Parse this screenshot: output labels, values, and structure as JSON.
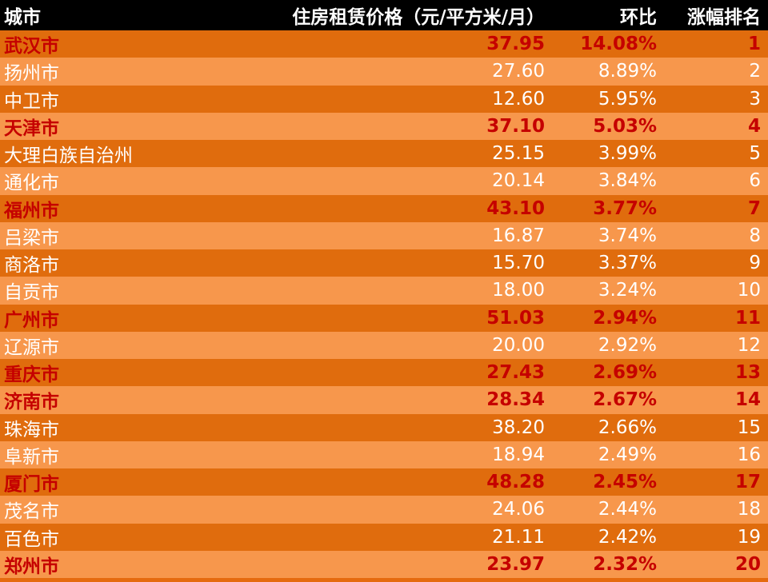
{
  "header": {
    "city": "城市",
    "price": "住房租赁价格（元/平方米/月）",
    "mom": "环比",
    "rank": "涨幅排名"
  },
  "rows": [
    {
      "city": "武汉市",
      "price": "37.95",
      "mom": "14.08%",
      "rank": "1",
      "highlight": true
    },
    {
      "city": "扬州市",
      "price": "27.60",
      "mom": "8.89%",
      "rank": "2",
      "highlight": false
    },
    {
      "city": "中卫市",
      "price": "12.60",
      "mom": "5.95%",
      "rank": "3",
      "highlight": false
    },
    {
      "city": "天津市",
      "price": "37.10",
      "mom": "5.03%",
      "rank": "4",
      "highlight": true
    },
    {
      "city": "大理白族自治州",
      "price": "25.15",
      "mom": "3.99%",
      "rank": "5",
      "highlight": false
    },
    {
      "city": "通化市",
      "price": "20.14",
      "mom": "3.84%",
      "rank": "6",
      "highlight": false
    },
    {
      "city": "福州市",
      "price": "43.10",
      "mom": "3.77%",
      "rank": "7",
      "highlight": true
    },
    {
      "city": "吕梁市",
      "price": "16.87",
      "mom": "3.74%",
      "rank": "8",
      "highlight": false
    },
    {
      "city": "商洛市",
      "price": "15.70",
      "mom": "3.37%",
      "rank": "9",
      "highlight": false
    },
    {
      "city": "自贡市",
      "price": "18.00",
      "mom": "3.24%",
      "rank": "10",
      "highlight": false
    },
    {
      "city": "广州市",
      "price": "51.03",
      "mom": "2.94%",
      "rank": "11",
      "highlight": true
    },
    {
      "city": "辽源市",
      "price": "20.00",
      "mom": "2.92%",
      "rank": "12",
      "highlight": false
    },
    {
      "city": "重庆市",
      "price": "27.43",
      "mom": "2.69%",
      "rank": "13",
      "highlight": true
    },
    {
      "city": "济南市",
      "price": "28.34",
      "mom": "2.67%",
      "rank": "14",
      "highlight": true
    },
    {
      "city": "珠海市",
      "price": "38.20",
      "mom": "2.66%",
      "rank": "15",
      "highlight": false
    },
    {
      "city": "阜新市",
      "price": "18.94",
      "mom": "2.49%",
      "rank": "16",
      "highlight": false
    },
    {
      "city": "厦门市",
      "price": "48.28",
      "mom": "2.45%",
      "rank": "17",
      "highlight": true
    },
    {
      "city": "茂名市",
      "price": "24.06",
      "mom": "2.44%",
      "rank": "18",
      "highlight": false
    },
    {
      "city": "百色市",
      "price": "21.11",
      "mom": "2.42%",
      "rank": "19",
      "highlight": false
    },
    {
      "city": "郑州市",
      "price": "23.97",
      "mom": "2.32%",
      "rank": "20",
      "highlight": true
    }
  ],
  "colors": {
    "header_bg": "#000000",
    "row_dark": "#e06c0d",
    "row_light": "#f7974c",
    "highlight_text": "#c50000",
    "normal_text": "#ffffff"
  }
}
